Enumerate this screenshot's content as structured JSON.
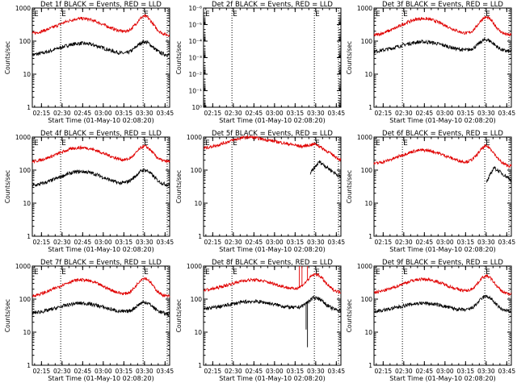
{
  "colors": {
    "events": "#000000",
    "lld": "#e00000",
    "axis": "#000000"
  },
  "common": {
    "xlabel": "Start Time (01-May-10 02:08:20)",
    "ylabel": "Counts/sec",
    "x_ticks": [
      "02:15",
      "02:30",
      "02:45",
      "03:00",
      "03:15",
      "03:30",
      "03:45"
    ],
    "x_range_minutes": [
      128.33,
      228.33
    ],
    "marker_label": "E",
    "marker_times": [
      "02:29",
      "03:29"
    ],
    "ylim": [
      1,
      1000
    ],
    "y_ticks": [
      "1",
      "10",
      "100",
      "1000"
    ]
  },
  "chart_data": [
    {
      "type": "line",
      "title": "Det 1f BLACK = Events, RED = LLD",
      "scale": "log",
      "series": [
        {
          "name": "Events",
          "shape": "normal",
          "base": 35,
          "peak1": 85,
          "dip": 40,
          "peak2": 95,
          "end": 38
        },
        {
          "name": "LLD",
          "shape": "normal",
          "base": 150,
          "peak1": 480,
          "dip": 160,
          "peak2": 560,
          "end": 150
        }
      ]
    },
    {
      "type": "line",
      "title": "Det 2f BLACK = Events, RED = LLD",
      "scale": "log",
      "ylim_exp": [
        0,
        -6
      ],
      "y_ticks": [
        "10⁰",
        "10⁻¹",
        "10⁻²",
        "10⁻³",
        "10⁻⁴",
        "10⁻⁵",
        "10⁻⁶"
      ],
      "series": []
    },
    {
      "type": "line",
      "title": "Det 3f BLACK = Events, RED = LLD",
      "scale": "log",
      "series": [
        {
          "name": "Events",
          "shape": "normal",
          "base": 45,
          "peak1": 95,
          "dip": 48,
          "peak2": 110,
          "end": 48
        },
        {
          "name": "LLD",
          "shape": "normal",
          "base": 130,
          "peak1": 480,
          "dip": 150,
          "peak2": 520,
          "end": 150
        }
      ]
    },
    {
      "type": "line",
      "title": "Det 4f BLACK = Events, RED = LLD",
      "scale": "log",
      "series": [
        {
          "name": "Events",
          "shape": "normal",
          "base": 30,
          "peak1": 90,
          "dip": 40,
          "peak2": 100,
          "end": 35
        },
        {
          "name": "LLD",
          "shape": "normal",
          "base": 160,
          "peak1": 480,
          "dip": 170,
          "peak2": 520,
          "end": 180
        }
      ]
    },
    {
      "type": "line",
      "title": "Det 5f BLACK = Events, RED = LLD",
      "scale": "log",
      "series": [
        {
          "name": "Events",
          "shape": "late",
          "start_time": 206,
          "base": 80,
          "peak2": 180,
          "end": 60
        },
        {
          "name": "LLD",
          "shape": "hump",
          "base": 400,
          "peak1": 1000,
          "dip": 520,
          "peak2": 620,
          "end": 200
        }
      ]
    },
    {
      "type": "line",
      "title": "Det 6f BLACK = Events, RED = LLD",
      "scale": "log",
      "series": [
        {
          "name": "Events",
          "shape": "late",
          "start_time": 210,
          "base": 40,
          "peak2": 120,
          "end": 50
        },
        {
          "name": "LLD",
          "shape": "normal",
          "base": 140,
          "peak1": 400,
          "dip": 150,
          "peak2": 520,
          "end": 130
        }
      ]
    },
    {
      "type": "line",
      "title": "Det 7f BLACK = Events, RED = LLD",
      "scale": "log",
      "series": [
        {
          "name": "Events",
          "shape": "normal",
          "base": 35,
          "peak1": 75,
          "dip": 38,
          "peak2": 80,
          "end": 35
        },
        {
          "name": "LLD",
          "shape": "normal",
          "base": 110,
          "peak1": 380,
          "dip": 120,
          "peak2": 430,
          "end": 120
        }
      ]
    },
    {
      "type": "line",
      "title": "Det 8f BLACK = Events, RED = LLD",
      "scale": "log",
      "series": [
        {
          "name": "Events",
          "shape": "normal",
          "base": 48,
          "peak1": 85,
          "dip": 50,
          "peak2": 110,
          "end": 45,
          "spikes": [
            {
              "t": 203,
              "v": 12
            },
            {
              "t": 204,
              "v": 3.5
            }
          ]
        },
        {
          "name": "LLD",
          "shape": "normal",
          "base": 170,
          "peak1": 380,
          "dip": 200,
          "peak2": 560,
          "end": 160,
          "spikes": [
            {
              "t": 198,
              "v": 1000
            },
            {
              "t": 200,
              "v": 1000
            },
            {
              "t": 204,
              "v": 1000
            }
          ]
        }
      ]
    },
    {
      "type": "line",
      "title": "Det 9f BLACK = Events, RED = LLD",
      "scale": "log",
      "series": [
        {
          "name": "Events",
          "shape": "normal",
          "base": 40,
          "peak1": 75,
          "dip": 42,
          "peak2": 120,
          "end": 42
        },
        {
          "name": "LLD",
          "shape": "normal",
          "base": 140,
          "peak1": 400,
          "dip": 150,
          "peak2": 500,
          "end": 140
        }
      ]
    }
  ]
}
